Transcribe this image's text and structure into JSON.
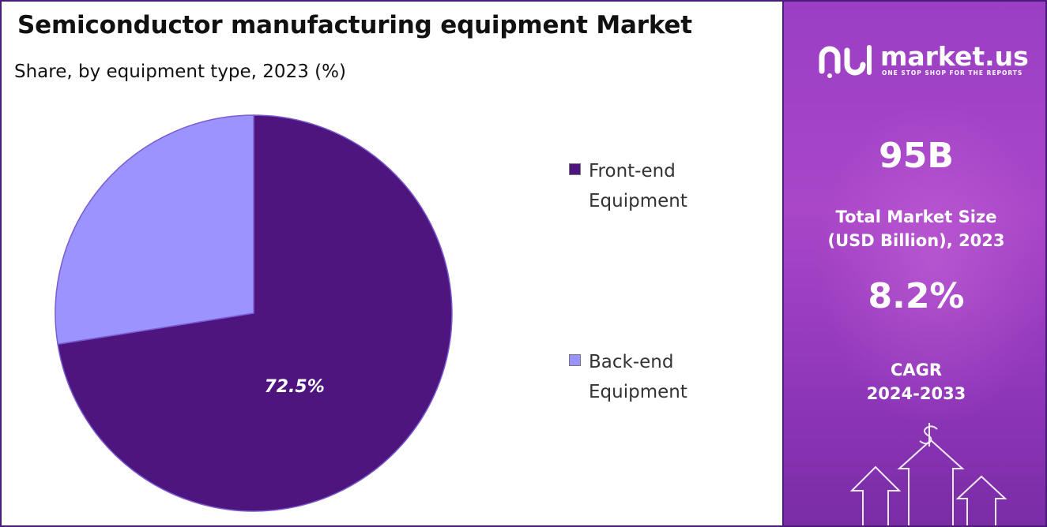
{
  "header": {
    "title": "Semiconductor manufacturing equipment Market",
    "subtitle": "Share, by equipment type, 2023 (%)"
  },
  "chart_data": {
    "type": "pie",
    "categories": [
      "Front-end Equipment",
      "Back-end Equipment"
    ],
    "values": [
      72.5,
      27.5
    ],
    "data_labels": [
      "72.5%",
      ""
    ],
    "colors": [
      "#4e157f",
      "#9b93ff"
    ],
    "legend_position": "right",
    "title": "Semiconductor manufacturing equipment Market",
    "subtitle": "Share, by equipment type, 2023 (%)"
  },
  "legend": {
    "items": [
      {
        "line1": "Front-end",
        "line2": "Equipment",
        "color": "#4e157f"
      },
      {
        "line1": "Back-end",
        "line2": "Equipment",
        "color": "#9b93ff"
      }
    ]
  },
  "sidebar": {
    "logo_name": "market.us",
    "logo_tagline": "ONE STOP SHOP FOR THE REPORTS",
    "market_size_value": "95B",
    "market_size_label_line1": "Total Market Size",
    "market_size_label_line2": "(USD Billion), 2023",
    "cagr_value": "8.2%",
    "cagr_label_line1": "CAGR",
    "cagr_label_line2": "2024-2033",
    "icons": [
      "logo-icon",
      "dollar-icon",
      "up-arrow-icon"
    ]
  }
}
